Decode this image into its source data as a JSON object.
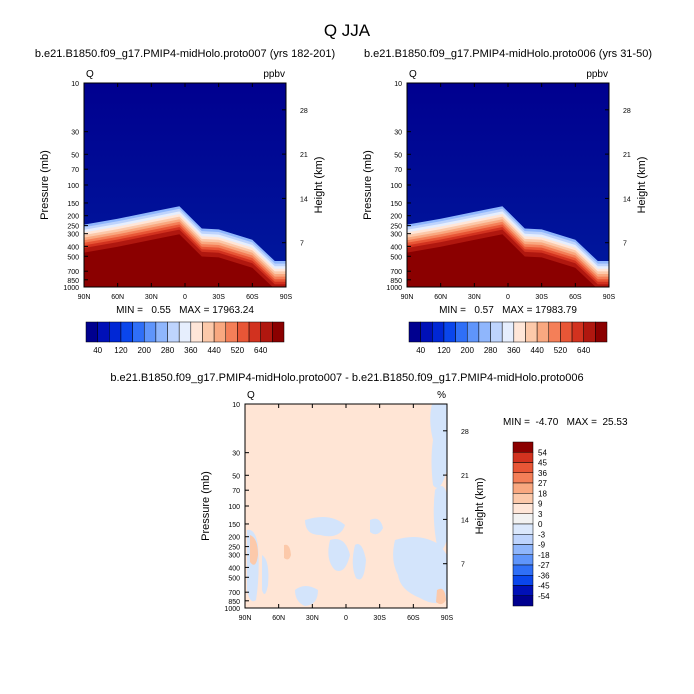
{
  "figure": {
    "title": "Q JJA"
  },
  "colors": {
    "scale_main": [
      "#00008f",
      "#0010b7",
      "#0027d5",
      "#0a46ec",
      "#2f6ff7",
      "#5f95fb",
      "#8fb6fc",
      "#bed4fd",
      "#e6eefd",
      "#ffe6d8",
      "#fcc9aa",
      "#f9a880",
      "#f47f58",
      "#e85636",
      "#d2321f",
      "#b0170f",
      "#8b0000"
    ],
    "diff_scale": [
      "#00008f",
      "#0010b7",
      "#0a46ec",
      "#2f6ff7",
      "#5f95fb",
      "#8fb6fc",
      "#bed4fd",
      "#dbe8fc",
      "#f2f2f2",
      "#ffe6d8",
      "#fcc9aa",
      "#f9a880",
      "#f47f58",
      "#e85636",
      "#d2321f",
      "#8b0000"
    ],
    "diff_fill_pos": "#ffe5d5",
    "diff_fill_neg": "#d3e4fb"
  },
  "chart_data": [
    {
      "type": "heatmap",
      "title": "b.e21.B1850.f09_g17.PMIP4-midHolo.proto007 (yrs 182-201)",
      "variable_label": "Q",
      "units": "ppbv",
      "ylabel": "Pressure (mb)",
      "ylabel_right": "Height (km)",
      "xticks": [
        "90N",
        "60N",
        "30N",
        "0",
        "30S",
        "60S",
        "90S"
      ],
      "yticks": [
        "10",
        "30",
        "50",
        "70",
        "100",
        "150",
        "200",
        "250",
        "300",
        "400",
        "500",
        "700",
        "850",
        "1000"
      ],
      "yticks_right": [
        "28",
        "21",
        "14",
        "7"
      ],
      "stats": "MIN =   0.55   MAX = 17963.24",
      "colorbar_labels": [
        "40",
        "120",
        "200",
        "280",
        "360",
        "440",
        "520",
        "640"
      ],
      "surface_pressure_profile": {
        "lat": [
          90,
          60,
          30,
          5,
          -15,
          -30,
          -60,
          -80,
          -90
        ],
        "pressure": [
          440,
          385,
          330,
          290,
          480,
          490,
          620,
          1000,
          1000
        ]
      }
    },
    {
      "type": "heatmap",
      "title": "b.e21.B1850.f09_g17.PMIP4-midHolo.proto006 (yrs 31-50)",
      "variable_label": "Q",
      "units": "ppbv",
      "ylabel": "Pressure (mb)",
      "ylabel_right": "Height (km)",
      "xticks": [
        "90N",
        "60N",
        "30N",
        "0",
        "30S",
        "60S",
        "90S"
      ],
      "yticks": [
        "10",
        "30",
        "50",
        "70",
        "100",
        "150",
        "200",
        "250",
        "300",
        "400",
        "500",
        "700",
        "850",
        "1000"
      ],
      "yticks_right": [
        "28",
        "21",
        "14",
        "7"
      ],
      "stats": "MIN =   0.57   MAX = 17983.79",
      "colorbar_labels": [
        "40",
        "120",
        "200",
        "280",
        "360",
        "440",
        "520",
        "640"
      ],
      "surface_pressure_profile": {
        "lat": [
          90,
          60,
          30,
          5,
          -15,
          -30,
          -60,
          -80,
          -90
        ],
        "pressure": [
          440,
          385,
          330,
          290,
          480,
          490,
          620,
          1000,
          1000
        ]
      }
    },
    {
      "type": "heatmap",
      "title": "b.e21.B1850.f09_g17.PMIP4-midHolo.proto007 - b.e21.B1850.f09_g17.PMIP4-midHolo.proto006",
      "variable_label": "Q",
      "units": "%",
      "ylabel": "Pressure (mb)",
      "ylabel_right": "Height (km)",
      "xticks": [
        "90N",
        "60N",
        "30N",
        "0",
        "30S",
        "60S",
        "90S"
      ],
      "yticks": [
        "10",
        "30",
        "50",
        "70",
        "100",
        "150",
        "200",
        "250",
        "300",
        "400",
        "500",
        "700",
        "850",
        "1000"
      ],
      "yticks_right": [
        "28",
        "21",
        "14",
        "7"
      ],
      "stats": "MIN =  -4.70   MAX =  25.53",
      "colorbar_labels": [
        "54",
        "45",
        "36",
        "27",
        "18",
        "9",
        "3",
        "0",
        "-3",
        "-9",
        "-18",
        "-27",
        "-36",
        "-45",
        "-54"
      ]
    }
  ]
}
